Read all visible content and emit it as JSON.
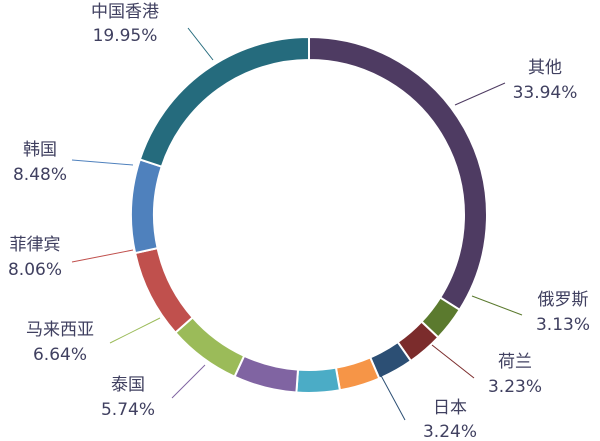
{
  "chart_data": {
    "type": "donut",
    "categories": [
      "其他",
      "俄罗斯",
      "荷兰",
      "日本",
      null,
      null,
      "泰国",
      "马来西亚",
      "菲律宾",
      "韩国",
      "中国香港"
    ],
    "values": [
      33.94,
      3.13,
      3.23,
      3.24,
      3.68,
      3.91,
      5.74,
      6.64,
      8.06,
      8.48,
      19.95
    ],
    "value_labels": [
      "33.94%",
      "3.13%",
      "3.23%",
      "3.24%",
      null,
      null,
      "5.74%",
      "6.64%",
      "8.06%",
      "8.48%",
      "19.95%"
    ],
    "colors": [
      "#4e3b62",
      "#5b7a2e",
      "#7b2c2c",
      "#2c4f74",
      "#f69547",
      "#4bacc6",
      "#8064a2",
      "#9bbb59",
      "#c0504d",
      "#4f81bd",
      "#256b7d"
    ]
  }
}
